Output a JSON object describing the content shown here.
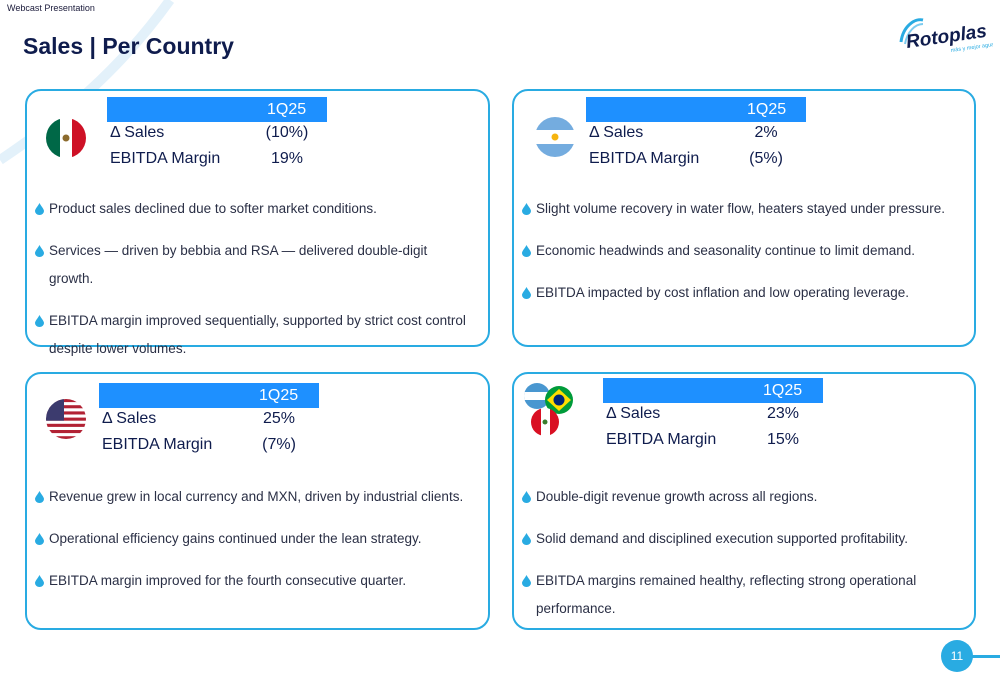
{
  "header": {
    "label": "Webcast Presentation",
    "title": "Sales | Per Country",
    "logo_text": "Rotoplas",
    "logo_tagline": "más y mejor agua"
  },
  "colors": {
    "accent": "#29abe2",
    "kpi_header": "#1e90ff",
    "title": "#0f1c4d"
  },
  "cards": [
    {
      "flag_icon": "mexico-flag-icon",
      "period": "1Q25",
      "sales_label": "Δ Sales",
      "sales_value": "(10%)",
      "ebitda_label": "EBITDA Margin",
      "ebitda_value": "19%",
      "bullets": [
        "Product sales declined due to softer market conditions.",
        "Services — driven by bebbia and RSA — delivered double-digit growth.",
        "EBITDA margin improved sequentially, supported by strict cost control despite lower volumes."
      ]
    },
    {
      "flag_icon": "argentina-flag-icon",
      "period": "1Q25",
      "sales_label": "Δ Sales",
      "sales_value": "2%",
      "ebitda_label": "EBITDA Margin",
      "ebitda_value": "(5%)",
      "bullets": [
        "Slight volume recovery in water flow, heaters stayed under pressure.",
        "Economic headwinds and seasonality continue to limit demand.",
        "EBITDA impacted by cost inflation and low operating leverage."
      ]
    },
    {
      "flag_icon": "usa-flag-icon",
      "period": "1Q25",
      "sales_label": "Δ Sales",
      "sales_value": "25%",
      "ebitda_label": "EBITDA Margin",
      "ebitda_value": "(7%)",
      "bullets": [
        "Revenue grew in local currency and MXN, driven by industrial clients.",
        "Operational efficiency gains continued under the lean strategy.",
        "EBITDA margin improved for the fourth consecutive quarter."
      ]
    },
    {
      "flag_icon": "others-flags-icon",
      "period": "1Q25",
      "sales_label": "Δ Sales",
      "sales_value": "23%",
      "ebitda_label": "EBITDA Margin",
      "ebitda_value": "15%",
      "bullets": [
        "Double-digit revenue growth across all regions.",
        "Solid demand and disciplined execution supported profitability.",
        "EBITDA margins remained healthy, reflecting strong operational performance."
      ]
    }
  ],
  "page_number": "11"
}
